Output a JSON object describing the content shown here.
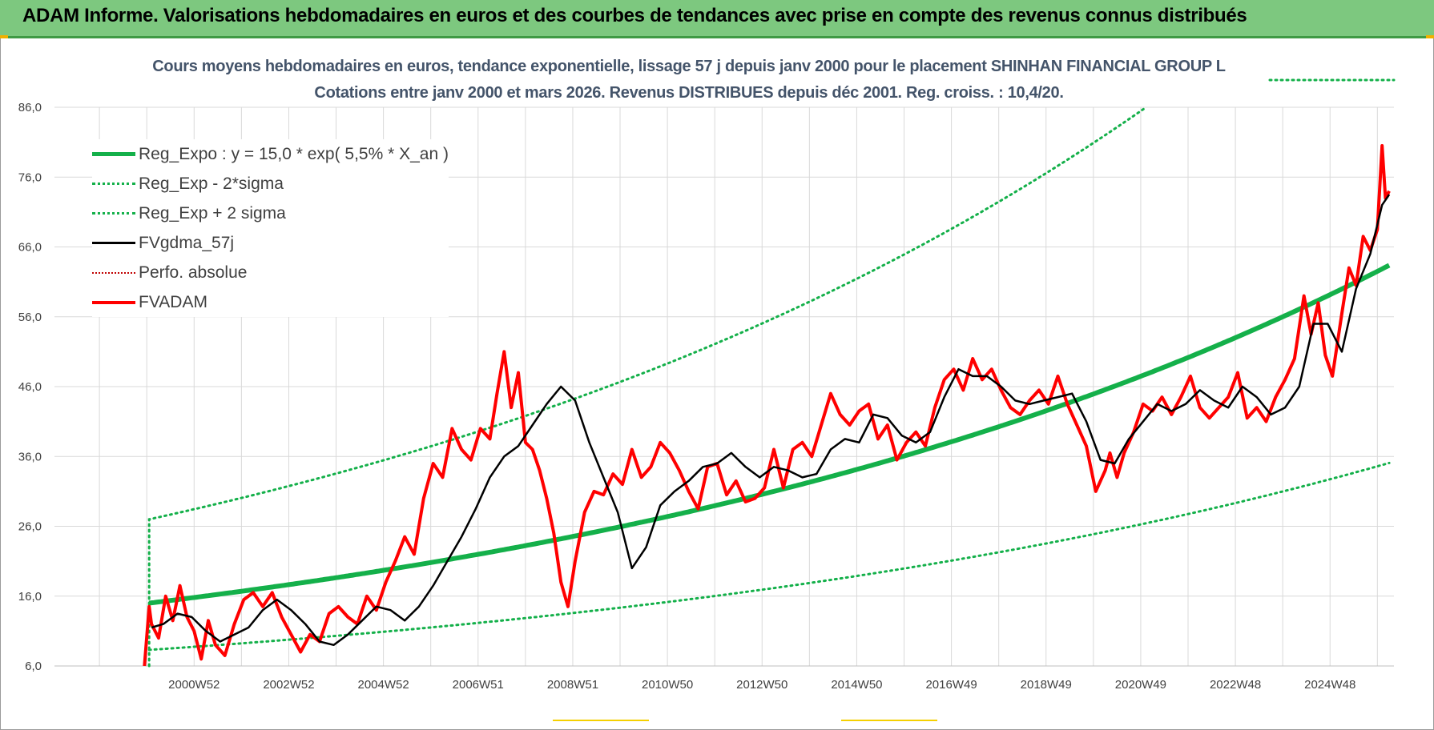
{
  "banner": {
    "title": "ADAM Informe. Valorisations hebdomadaires en euros et des courbes de tendances avec prise en compte des revenus connus distribués"
  },
  "colors": {
    "banner_bg": "#7dc87f",
    "trend": "#14b04a",
    "band": "#14b04a",
    "smoothed": "#000000",
    "price": "#ff0000",
    "perf": "#c00000",
    "grid": "#d9d9d9",
    "title": "#44546a"
  },
  "chart_data": {
    "type": "line",
    "title": "Cours moyens hebdomadaires en euros, tendance exponentielle, lissage 57 j depuis janv 2000 pour le placement SHINHAN FINANCIAL GROUP L",
    "subtitle": "Cotations entre janv 2000 et mars 2026. Revenus DISTRIBUES depuis déc 2001. Reg. croiss. : 10,4/20.",
    "xlabel": "",
    "ylabel": "",
    "ylim": [
      6,
      86
    ],
    "y_ticks": [
      "6,0",
      "16,0",
      "26,0",
      "36,0",
      "46,0",
      "56,0",
      "66,0",
      "76,0",
      "86,0"
    ],
    "y_tick_values": [
      6,
      16,
      26,
      36,
      46,
      56,
      66,
      76,
      86
    ],
    "xlim": [
      1998.0,
      2026.3
    ],
    "x_ticks": [
      "2000W52",
      "2002W52",
      "2004W52",
      "2006W51",
      "2008W51",
      "2010W50",
      "2012W50",
      "2014W50",
      "2016W49",
      "2018W49",
      "2020W49",
      "2022W48",
      "2024W48"
    ],
    "x_tick_values": [
      2000.95,
      2002.95,
      2004.95,
      2006.95,
      2008.95,
      2010.95,
      2012.95,
      2014.95,
      2016.95,
      2018.95,
      2020.95,
      2022.95,
      2024.95
    ],
    "grid": true,
    "legend_position": "top-left",
    "series": [
      {
        "name": "Reg_Expo : y = 15,0 * exp( 5,5% *  X_an )",
        "style": "thick-solid",
        "formula": {
          "a": 15.0,
          "rate": 0.055,
          "start": 2000.0,
          "end": 2026.2
        }
      },
      {
        "name": "Reg_Exp - 2*sigma",
        "style": "dotted",
        "formula": {
          "a": 8.3,
          "rate": 0.055,
          "start": 2000.0,
          "end": 2026.2
        }
      },
      {
        "name": "Reg_Exp + 2 sigma",
        "style": "dotted",
        "formula": {
          "a": 27.0,
          "rate": 0.055,
          "start": 2000.0,
          "end": 2026.2
        }
      },
      {
        "name": "FVgdma_57j",
        "style": "solid",
        "x": [
          2000.05,
          2000.3,
          2000.6,
          2000.9,
          2001.2,
          2001.5,
          2001.8,
          2002.1,
          2002.4,
          2002.7,
          2003.0,
          2003.3,
          2003.6,
          2003.9,
          2004.2,
          2004.5,
          2004.8,
          2005.1,
          2005.4,
          2005.7,
          2006.0,
          2006.3,
          2006.6,
          2006.9,
          2007.2,
          2007.5,
          2007.8,
          2008.1,
          2008.4,
          2008.7,
          2009.0,
          2009.3,
          2009.6,
          2009.9,
          2010.2,
          2010.5,
          2010.8,
          2011.1,
          2011.4,
          2011.7,
          2012.0,
          2012.3,
          2012.6,
          2012.9,
          2013.2,
          2013.5,
          2013.8,
          2014.1,
          2014.4,
          2014.7,
          2015.0,
          2015.3,
          2015.6,
          2015.9,
          2016.2,
          2016.5,
          2016.8,
          2017.1,
          2017.4,
          2017.7,
          2018.0,
          2018.3,
          2018.6,
          2018.9,
          2019.2,
          2019.5,
          2019.8,
          2020.1,
          2020.4,
          2020.7,
          2021.0,
          2021.3,
          2021.6,
          2021.9,
          2022.2,
          2022.5,
          2022.8,
          2023.1,
          2023.4,
          2023.7,
          2024.0,
          2024.3,
          2024.6,
          2024.9,
          2025.2,
          2025.5,
          2025.8,
          2026.05,
          2026.2
        ],
        "values": [
          11.5,
          12.0,
          13.5,
          13.0,
          11.0,
          9.5,
          10.5,
          11.5,
          14.0,
          15.5,
          14.0,
          12.0,
          9.5,
          9.0,
          10.5,
          12.5,
          14.5,
          14.0,
          12.5,
          14.5,
          17.5,
          21.0,
          24.5,
          28.5,
          33.0,
          36.0,
          37.5,
          40.5,
          43.5,
          46.0,
          44.0,
          38.0,
          33.0,
          28.0,
          20.0,
          23.0,
          29.0,
          31.0,
          32.5,
          34.5,
          35.0,
          36.5,
          34.5,
          33.0,
          34.5,
          34.0,
          33.0,
          33.5,
          37.0,
          38.5,
          38.0,
          42.0,
          41.5,
          39.0,
          38.0,
          39.5,
          44.5,
          48.5,
          47.5,
          47.5,
          46.0,
          44.0,
          43.5,
          44.0,
          44.5,
          45.0,
          41.0,
          35.5,
          35.0,
          38.5,
          41.0,
          43.5,
          42.5,
          43.5,
          45.5,
          44.0,
          43.0,
          46.0,
          44.5,
          42.0,
          43.0,
          46.0,
          55.0,
          55.0,
          51.0,
          60.0,
          65.0,
          72.0,
          73.5
        ]
      },
      {
        "name": "Perfo. absolue",
        "style": "dotted",
        "x": [],
        "values": []
      },
      {
        "name": "FVADAM",
        "style": "thick-solid",
        "x": [
          1999.9,
          2000.0,
          2000.05,
          2000.2,
          2000.35,
          2000.5,
          2000.65,
          2000.8,
          2000.95,
          2001.1,
          2001.25,
          2001.4,
          2001.6,
          2001.8,
          2002.0,
          2002.2,
          2002.4,
          2002.6,
          2002.8,
          2003.0,
          2003.2,
          2003.4,
          2003.6,
          2003.8,
          2004.0,
          2004.2,
          2004.4,
          2004.6,
          2004.8,
          2005.0,
          2005.2,
          2005.4,
          2005.6,
          2005.8,
          2006.0,
          2006.2,
          2006.4,
          2006.6,
          2006.8,
          2007.0,
          2007.2,
          2007.35,
          2007.5,
          2007.65,
          2007.8,
          2007.95,
          2008.1,
          2008.25,
          2008.4,
          2008.55,
          2008.7,
          2008.85,
          2009.0,
          2009.2,
          2009.4,
          2009.6,
          2009.8,
          2010.0,
          2010.2,
          2010.4,
          2010.6,
          2010.8,
          2011.0,
          2011.2,
          2011.4,
          2011.6,
          2011.8,
          2012.0,
          2012.2,
          2012.4,
          2012.6,
          2012.8,
          2013.0,
          2013.2,
          2013.4,
          2013.6,
          2013.8,
          2014.0,
          2014.2,
          2014.4,
          2014.6,
          2014.8,
          2015.0,
          2015.2,
          2015.4,
          2015.6,
          2015.8,
          2016.0,
          2016.2,
          2016.4,
          2016.6,
          2016.8,
          2017.0,
          2017.2,
          2017.4,
          2017.6,
          2017.8,
          2018.0,
          2018.2,
          2018.4,
          2018.6,
          2018.8,
          2019.0,
          2019.2,
          2019.4,
          2019.6,
          2019.8,
          2020.0,
          2020.2,
          2020.3,
          2020.45,
          2020.6,
          2020.8,
          2021.0,
          2021.2,
          2021.4,
          2021.6,
          2021.8,
          2022.0,
          2022.2,
          2022.4,
          2022.6,
          2022.8,
          2023.0,
          2023.2,
          2023.4,
          2023.6,
          2023.8,
          2024.0,
          2024.2,
          2024.4,
          2024.55,
          2024.7,
          2024.85,
          2025.0,
          2025.2,
          2025.35,
          2025.5,
          2025.65,
          2025.8,
          2025.95,
          2026.05,
          2026.12,
          2026.2
        ],
        "values": [
          5.5,
          14.5,
          12.0,
          10.0,
          16.0,
          12.5,
          17.5,
          13.0,
          11.0,
          7.0,
          12.5,
          9.0,
          7.5,
          12.0,
          15.5,
          16.5,
          14.5,
          16.5,
          13.0,
          10.5,
          8.0,
          10.5,
          9.5,
          13.5,
          14.5,
          13.0,
          12.0,
          16.0,
          14.0,
          18.0,
          21.0,
          24.5,
          22.0,
          30.0,
          35.0,
          33.0,
          40.0,
          37.0,
          35.5,
          40.0,
          38.5,
          45.0,
          51.0,
          43.0,
          48.0,
          38.0,
          37.0,
          34.0,
          30.0,
          25.0,
          18.0,
          14.5,
          21.0,
          28.0,
          31.0,
          30.5,
          33.5,
          32.0,
          37.0,
          33.0,
          34.5,
          38.0,
          36.5,
          34.0,
          31.0,
          28.5,
          34.5,
          35.0,
          30.5,
          32.5,
          29.5,
          30.0,
          31.5,
          37.0,
          31.5,
          37.0,
          38.0,
          36.0,
          40.5,
          45.0,
          42.0,
          40.5,
          42.5,
          43.5,
          38.5,
          40.5,
          35.5,
          38.0,
          39.5,
          37.5,
          43.0,
          47.0,
          48.5,
          45.5,
          50.0,
          47.0,
          48.5,
          45.5,
          43.0,
          42.0,
          44.0,
          45.5,
          43.5,
          47.5,
          43.5,
          40.5,
          37.5,
          31.0,
          34.0,
          36.5,
          33.0,
          36.5,
          39.5,
          43.5,
          42.5,
          44.5,
          42.0,
          44.5,
          47.5,
          43.0,
          41.5,
          43.0,
          44.5,
          48.0,
          41.5,
          43.0,
          41.0,
          44.5,
          47.0,
          50.0,
          59.0,
          53.5,
          58.0,
          50.5,
          47.5,
          56.5,
          63.0,
          60.5,
          67.5,
          65.5,
          68.5,
          80.5,
          73.0,
          74.0
        ]
      }
    ]
  }
}
